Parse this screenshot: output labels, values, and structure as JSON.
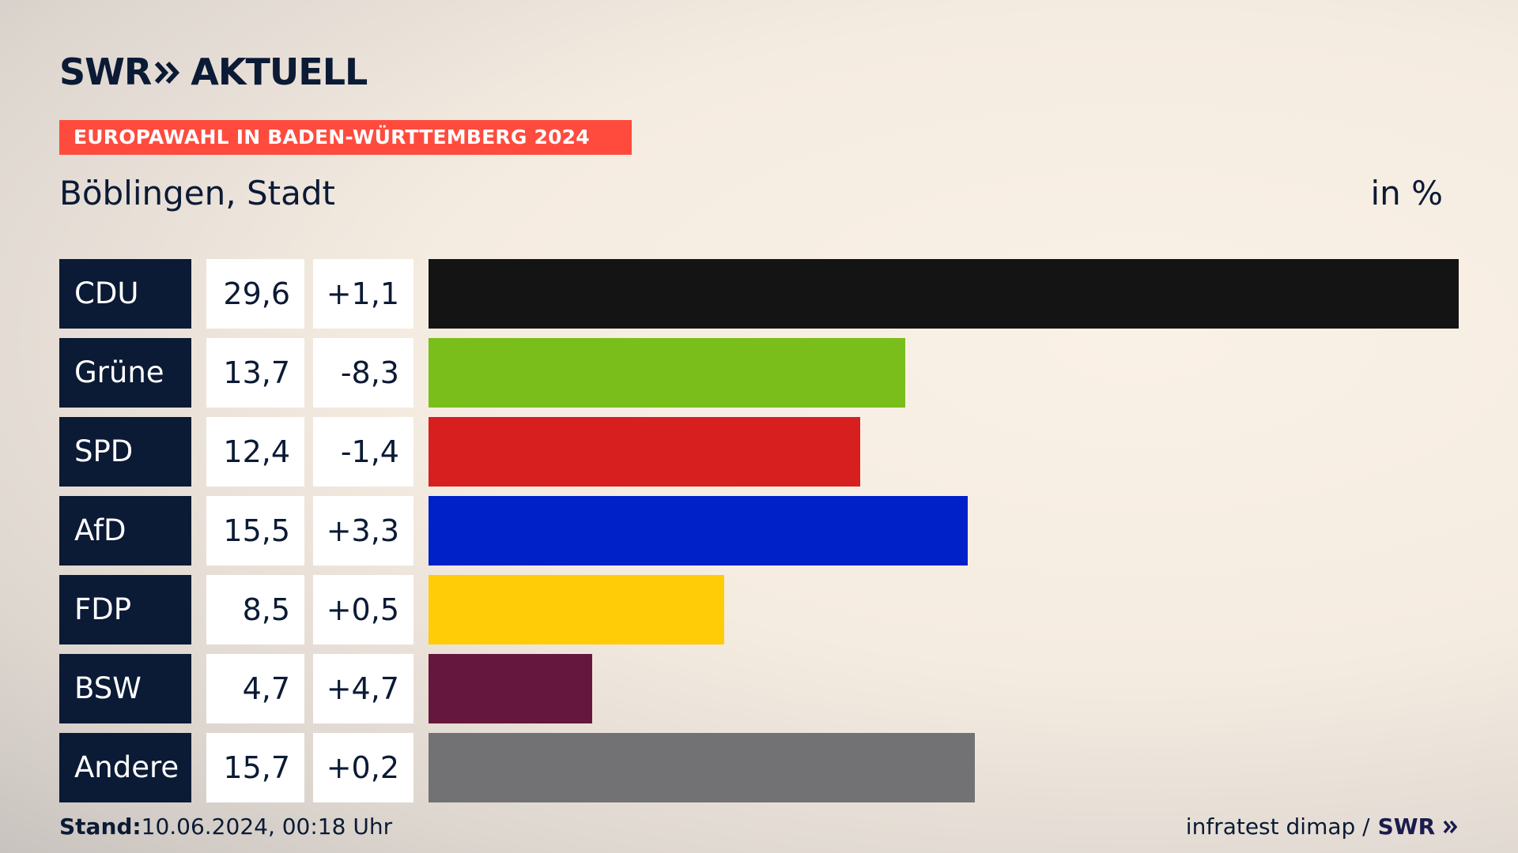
{
  "brand": {
    "logo_left": "SWR",
    "logo_right": "AKTUELL"
  },
  "banner": {
    "text": "EUROPAWAHL IN BADEN-WÜRTTEMBERG 2024",
    "color": "#ff4b3e"
  },
  "subtitle": "Böblingen, Stadt",
  "unit": "in %",
  "chart_data": {
    "type": "bar",
    "orientation": "horizontal",
    "categories": [
      "CDU",
      "Grüne",
      "SPD",
      "AfD",
      "FDP",
      "BSW",
      "Andere"
    ],
    "values": [
      "29,6",
      "13,7",
      "12,4",
      "15,5",
      "8,5",
      "4,7",
      "15,7"
    ],
    "numeric_values": [
      29.6,
      13.7,
      12.4,
      15.5,
      8.5,
      4.7,
      15.7
    ],
    "changes": [
      "+1,1",
      "-8,3",
      "-1,4",
      "+3,3",
      "+0,5",
      "+4,7",
      "+0,2"
    ],
    "colors": [
      "#141414",
      "#7abe1c",
      "#d81f1f",
      "#0020c8",
      "#ffcc07",
      "#66173d",
      "#727274"
    ],
    "xlim": [
      0,
      29.6
    ],
    "grid": false
  },
  "footer": {
    "stand_label": "Stand:",
    "stand_value": "10.06.2024, 00:18 Uhr",
    "source": "infratest dimap /",
    "source_logo": "SWR"
  }
}
